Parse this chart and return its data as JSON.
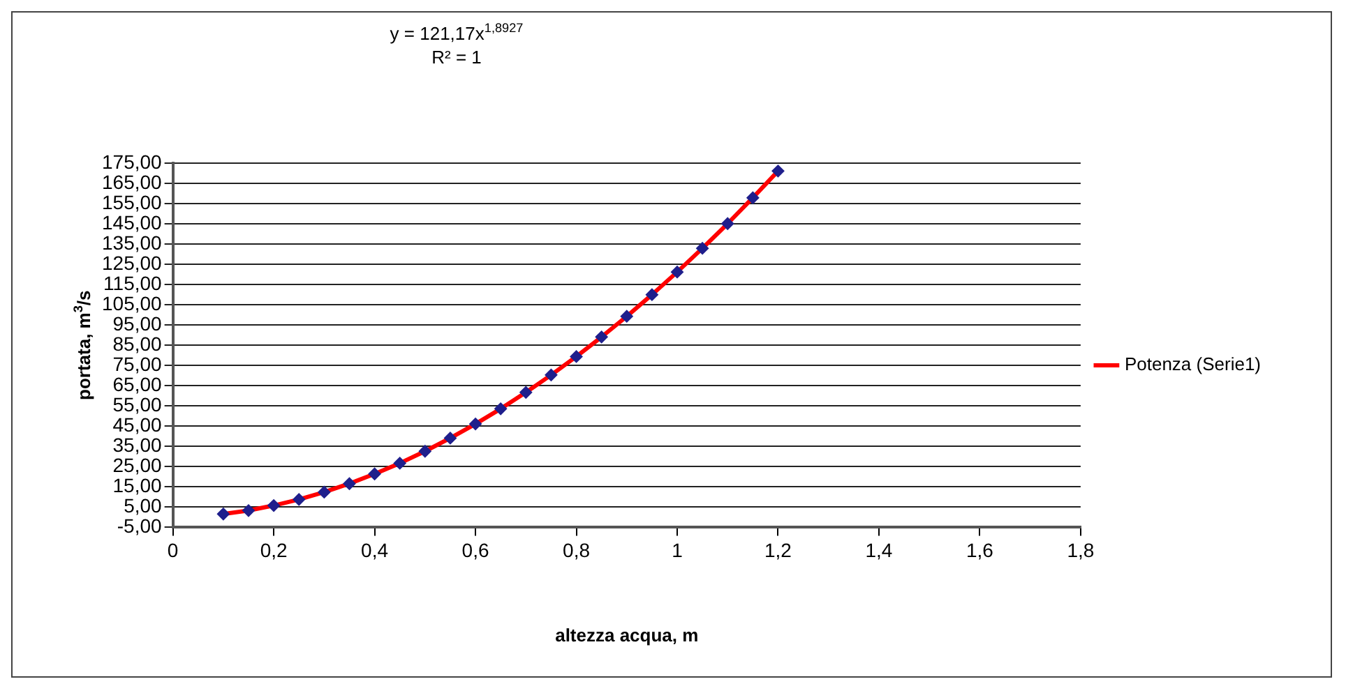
{
  "chart_data": {
    "type": "scatter",
    "xlabel": "altezza acqua, m",
    "ylabel": "portata, m$^{3}$/s",
    "annotations": [
      "y = 121,17x$^{1,8927}$",
      "R² = 1"
    ],
    "x": [
      0.1,
      0.15,
      0.2,
      0.25,
      0.3,
      0.35,
      0.4,
      0.45,
      0.5,
      0.55,
      0.6,
      0.65,
      0.7,
      0.75,
      0.8,
      0.85,
      0.9,
      0.95,
      1.0,
      1.05,
      1.1,
      1.15,
      1.2
    ],
    "series": [
      {
        "type": "scatter",
        "color": "#1f1f8c",
        "marker": "diamond",
        "values": [
          1.6,
          3.3,
          5.8,
          8.8,
          12.4,
          16.6,
          21.4,
          26.7,
          32.6,
          39.1,
          46.1,
          53.6,
          61.7,
          70.3,
          79.4,
          89.1,
          99.3,
          110.0,
          121.2,
          132.9,
          145.1,
          157.9,
          171.1
        ]
      },
      {
        "type": "line",
        "name": "Potenza (Serie1)",
        "color": "#ff0000",
        "marker": "none",
        "line_style": "solid",
        "x": [
          0.1,
          0.15,
          0.2,
          0.25,
          0.3,
          0.35,
          0.4,
          0.45,
          0.5,
          0.55,
          0.6,
          0.65,
          0.7,
          0.75,
          0.8,
          0.85,
          0.9,
          0.95,
          1.0,
          1.05,
          1.1,
          1.15,
          1.2
        ],
        "values": [
          1.6,
          3.3,
          5.8,
          8.8,
          12.4,
          16.6,
          21.4,
          26.7,
          32.6,
          39.1,
          46.1,
          53.6,
          61.7,
          70.3,
          79.4,
          89.1,
          99.3,
          110.0,
          121.2,
          132.9,
          145.1,
          157.9,
          171.1
        ]
      }
    ],
    "xlim": [
      0,
      1.8
    ],
    "xticks": [
      0,
      {
        "value": 0.2,
        "label": "0,2"
      },
      {
        "value": 0.4,
        "label": "0,4"
      },
      {
        "value": 0.6,
        "label": "0,6"
      },
      {
        "value": 0.8,
        "label": "0,8"
      },
      1,
      {
        "value": 1.2,
        "label": "1,2"
      },
      {
        "value": 1.4,
        "label": "1,4"
      },
      {
        "value": 1.6,
        "label": "1,6"
      },
      {
        "value": 1.8,
        "label": "1,8"
      }
    ],
    "ylim": [
      -5,
      175
    ],
    "yticks": [
      {
        "value": -5,
        "label": "-5,00"
      },
      {
        "value": 5,
        "label": "5,00"
      },
      {
        "value": 15,
        "label": "15,00"
      },
      {
        "value": 25,
        "label": "25,00"
      },
      {
        "value": 35,
        "label": "35,00"
      },
      {
        "value": 45,
        "label": "45,00"
      },
      {
        "value": 55,
        "label": "55,00"
      },
      {
        "value": 65,
        "label": "65,00"
      },
      {
        "value": 75,
        "label": "75,00"
      },
      {
        "value": 85,
        "label": "85,00"
      },
      {
        "value": 95,
        "label": "95,00"
      },
      {
        "value": 105,
        "label": "105,00"
      },
      {
        "value": 115,
        "label": "115,00"
      },
      {
        "value": 125,
        "label": "125,00"
      },
      {
        "value": 135,
        "label": "135,00"
      },
      {
        "value": 145,
        "label": "145,00"
      },
      {
        "value": 155,
        "label": "155,00"
      },
      {
        "value": 165,
        "label": "165,00"
      },
      {
        "value": 175,
        "label": "175,00"
      }
    ],
    "grid": "y",
    "legend": "right"
  }
}
